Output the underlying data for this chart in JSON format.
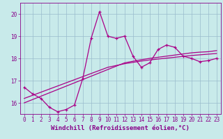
{
  "title": "",
  "xlabel": "Windchill (Refroidissement éolien,°C)",
  "ylabel": "",
  "bg_color": "#c8eaea",
  "line_color": "#aa0088",
  "grid_color": "#99bbcc",
  "x_data": [
    0,
    1,
    2,
    3,
    4,
    5,
    6,
    7,
    8,
    9,
    10,
    11,
    12,
    13,
    14,
    15,
    16,
    17,
    18,
    19,
    20,
    21,
    22,
    23
  ],
  "y_main": [
    16.7,
    16.4,
    16.2,
    15.8,
    15.6,
    15.7,
    15.9,
    17.1,
    18.9,
    20.1,
    19.0,
    18.9,
    19.0,
    18.1,
    17.6,
    17.8,
    18.4,
    18.6,
    18.5,
    18.1,
    18.0,
    17.85,
    17.9,
    18.0
  ],
  "y_reg1": [
    16.0,
    16.15,
    16.3,
    16.45,
    16.6,
    16.75,
    16.9,
    17.05,
    17.2,
    17.35,
    17.5,
    17.65,
    17.8,
    17.87,
    17.94,
    18.0,
    18.05,
    18.1,
    18.15,
    18.2,
    18.25,
    18.28,
    18.3,
    18.35
  ],
  "y_reg2": [
    16.2,
    16.34,
    16.48,
    16.62,
    16.76,
    16.9,
    17.04,
    17.18,
    17.32,
    17.46,
    17.6,
    17.68,
    17.76,
    17.82,
    17.88,
    17.93,
    17.97,
    18.01,
    18.05,
    18.09,
    18.13,
    18.16,
    18.19,
    18.22
  ],
  "ylim": [
    15.5,
    20.5
  ],
  "xlim": [
    -0.5,
    23.5
  ],
  "yticks": [
    16,
    17,
    18,
    19,
    20
  ],
  "xticks": [
    0,
    1,
    2,
    3,
    4,
    5,
    6,
    7,
    8,
    9,
    10,
    11,
    12,
    13,
    14,
    15,
    16,
    17,
    18,
    19,
    20,
    21,
    22,
    23
  ],
  "tick_label_size": 5.5,
  "xlabel_size": 6.5,
  "marker": "+",
  "marker_size": 3.5,
  "line_width": 0.9
}
